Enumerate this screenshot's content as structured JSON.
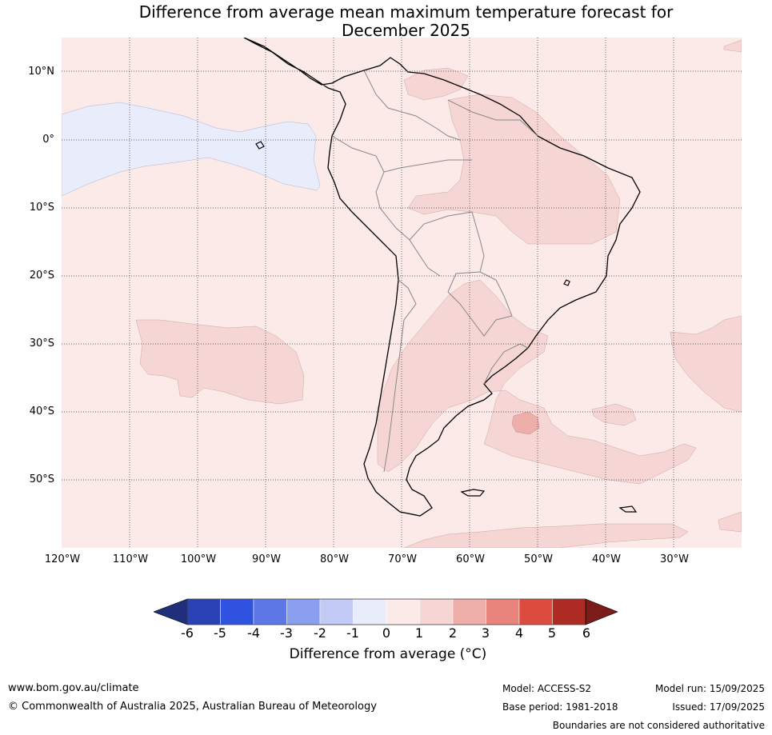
{
  "title": {
    "line1": "Difference from average mean maximum temperature forecast for",
    "line2": "December 2025"
  },
  "latitudes": [
    "10°N",
    "0°",
    "10°S",
    "20°S",
    "30°S",
    "40°S",
    "50°S"
  ],
  "longitudes": [
    "120°W",
    "110°W",
    "100°W",
    "90°W",
    "80°W",
    "70°W",
    "60°W",
    "50°W",
    "40°W",
    "30°W"
  ],
  "colorbar": {
    "ticks": [
      "-6",
      "-5",
      "-4",
      "-3",
      "-2",
      "-1",
      "0",
      "1",
      "2",
      "3",
      "4",
      "5",
      "6"
    ],
    "colors": [
      "#1f2f7a",
      "#2a40b5",
      "#3052e0",
      "#5d78e6",
      "#8a9fee",
      "#c2caf5",
      "#e9ecfb",
      "#fbeae8",
      "#f5d6d4",
      "#eeaea9",
      "#e8847c",
      "#dc4c3e",
      "#ad2b22",
      "#7a1c17"
    ],
    "label": "Difference from average (°C)"
  },
  "footer": {
    "website": "www.bom.gov.au/climate",
    "copyright": "© Commonwealth of Australia 2025, Australian Bureau of Meteorology",
    "model": "Model: ACCESS-S2",
    "base_period": "Base period: 1981-2018",
    "model_run": "Model run: 15/09/2025",
    "issued": "Issued: 17/09/2025",
    "disclaimer": "Boundaries are not considered authoritative"
  }
}
